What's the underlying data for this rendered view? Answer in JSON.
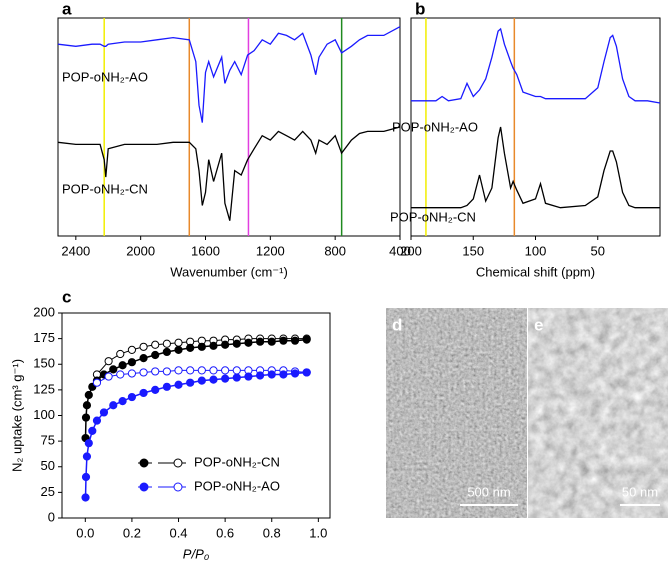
{
  "chart_data": [
    {
      "type": "line",
      "panel": "a",
      "xlabel": "Wavenumber (cm⁻¹)",
      "x": [
        2510,
        2400,
        2300,
        2250,
        2225,
        2215,
        2200,
        2100,
        2000,
        1900,
        1800,
        1700,
        1660,
        1640,
        1620,
        1600,
        1580,
        1550,
        1500,
        1480,
        1450,
        1420,
        1380,
        1340,
        1300,
        1250,
        1200,
        1150,
        1100,
        1050,
        1000,
        950,
        920,
        900,
        850,
        800,
        760,
        700,
        650,
        600,
        500,
        400
      ],
      "xlim": [
        2510,
        400
      ],
      "xticks": [
        2400,
        2000,
        1600,
        1200,
        800,
        400
      ],
      "ylim": [
        0,
        100
      ],
      "vlines": [
        {
          "value": 2225,
          "color": "#f2ee00"
        },
        {
          "value": 1700,
          "color": "#e8892b"
        },
        {
          "value": 1335,
          "color": "#e23fe0"
        },
        {
          "value": 760,
          "color": "#1f8a1f"
        }
      ],
      "series": [
        {
          "name": "POP-oNH₂-AO",
          "color": "#1a1aff",
          "values": [
            88,
            87,
            88,
            88,
            87,
            87,
            88,
            89,
            89,
            90,
            91,
            90,
            80,
            60,
            52,
            75,
            80,
            73,
            82,
            70,
            76,
            80,
            74,
            83,
            85,
            90,
            88,
            93,
            92,
            90,
            93,
            83,
            74,
            82,
            88,
            90,
            84,
            87,
            90,
            92,
            92,
            96
          ]
        },
        {
          "name": "POP-oNH₂-CN",
          "color": "#000000",
          "values": [
            43,
            42,
            42,
            42,
            35,
            27,
            40,
            42,
            42,
            42,
            43,
            43,
            40,
            30,
            14,
            20,
            35,
            25,
            38,
            15,
            7,
            30,
            28,
            35,
            40,
            46,
            44,
            48,
            46,
            44,
            48,
            44,
            38,
            44,
            42,
            46,
            38,
            44,
            47,
            48,
            48,
            50
          ]
        }
      ]
    },
    {
      "type": "line",
      "panel": "b",
      "xlabel": "Chemical shift (ppm)",
      "x": [
        200,
        180,
        175,
        170,
        160,
        155,
        150,
        145,
        140,
        135,
        130,
        128,
        125,
        120,
        118,
        115,
        110,
        100,
        96,
        92,
        80,
        60,
        50,
        45,
        40,
        38,
        35,
        30,
        25,
        20,
        10,
        0
      ],
      "xlim": [
        200,
        0
      ],
      "xticks": [
        200,
        150,
        100,
        50
      ],
      "ylim": [
        0,
        100
      ],
      "vlines": [
        {
          "value": 188,
          "color": "#f2ee00"
        },
        {
          "value": 117,
          "color": "#e8892b"
        }
      ],
      "series": [
        {
          "name": "POP-oNH₂-AO",
          "color": "#1a1aff",
          "values": [
            62,
            62,
            64,
            62,
            63,
            70,
            64,
            67,
            72,
            82,
            94,
            95,
            88,
            80,
            77,
            74,
            66,
            64,
            64,
            63,
            63,
            63,
            68,
            80,
            91,
            92,
            87,
            72,
            64,
            62,
            62,
            61
          ]
        },
        {
          "name": "POP-oNH₂-CN",
          "color": "#000000",
          "values": [
            13,
            13,
            13,
            13,
            13,
            14,
            17,
            28,
            16,
            22,
            45,
            50,
            38,
            22,
            25,
            21,
            15,
            17,
            24,
            15,
            13,
            14,
            18,
            30,
            39,
            39,
            34,
            20,
            14,
            13,
            13,
            13
          ]
        }
      ]
    },
    {
      "type": "isotherm",
      "panel": "c",
      "xlabel": "P/P₀",
      "ylabel": "N₂ uptake (cm³ g⁻¹)",
      "xlim": [
        -0.1,
        1.05
      ],
      "ylim": [
        0,
        200
      ],
      "xticks": [
        {
          "value": 0,
          "label": "0.0"
        },
        0.2,
        0.4,
        0.6,
        0.8,
        {
          "value": 1,
          "label": "1.0"
        }
      ],
      "yticks": [
        0,
        25,
        50,
        75,
        100,
        125,
        150,
        175,
        200
      ],
      "series": [
        {
          "name": "POP-oNH₂-CN",
          "color": "#000000",
          "x": [
            0.001,
            0.003,
            0.007,
            0.015,
            0.03,
            0.05,
            0.08,
            0.12,
            0.16,
            0.2,
            0.25,
            0.3,
            0.35,
            0.4,
            0.45,
            0.5,
            0.55,
            0.6,
            0.65,
            0.7,
            0.75,
            0.8,
            0.85,
            0.9,
            0.95
          ],
          "values": [
            78,
            98,
            110,
            120,
            128,
            134,
            140,
            145,
            149,
            152,
            156,
            159,
            162,
            164,
            166,
            167,
            168,
            169,
            170,
            171,
            172,
            172,
            173,
            173,
            174
          ],
          "desorption_x": [
            0.95,
            0.9,
            0.85,
            0.8,
            0.75,
            0.7,
            0.65,
            0.6,
            0.55,
            0.5,
            0.45,
            0.4,
            0.35,
            0.3,
            0.25,
            0.2,
            0.15,
            0.1,
            0.05
          ],
          "desorption_values": [
            175,
            175,
            175,
            175,
            175,
            175,
            174,
            174,
            173,
            173,
            172,
            171,
            170,
            169,
            167,
            164,
            160,
            153,
            140
          ]
        },
        {
          "name": "POP-oNH₂-AO",
          "color": "#1a1aff",
          "x": [
            0.001,
            0.003,
            0.007,
            0.015,
            0.03,
            0.05,
            0.08,
            0.12,
            0.16,
            0.2,
            0.25,
            0.3,
            0.35,
            0.4,
            0.45,
            0.5,
            0.55,
            0.6,
            0.65,
            0.7,
            0.75,
            0.8,
            0.85,
            0.9,
            0.95
          ],
          "values": [
            20,
            40,
            60,
            73,
            85,
            95,
            103,
            110,
            114,
            118,
            122,
            125,
            128,
            130,
            132,
            134,
            135,
            136,
            137,
            138,
            139,
            140,
            140,
            141,
            142
          ],
          "desorption_x": [
            0.95,
            0.9,
            0.85,
            0.8,
            0.75,
            0.7,
            0.65,
            0.6,
            0.55,
            0.5,
            0.45,
            0.4,
            0.35,
            0.3,
            0.25,
            0.2,
            0.15,
            0.1,
            0.05
          ],
          "desorption_values": [
            142,
            143,
            144,
            144,
            144,
            144,
            144,
            144,
            144,
            144,
            144,
            144,
            143,
            143,
            142,
            141,
            140,
            138,
            132
          ]
        }
      ]
    }
  ],
  "images": [
    {
      "label": "d",
      "scale_bar": "500 nm"
    },
    {
      "label": "e",
      "scale_bar": "50 nm"
    }
  ]
}
